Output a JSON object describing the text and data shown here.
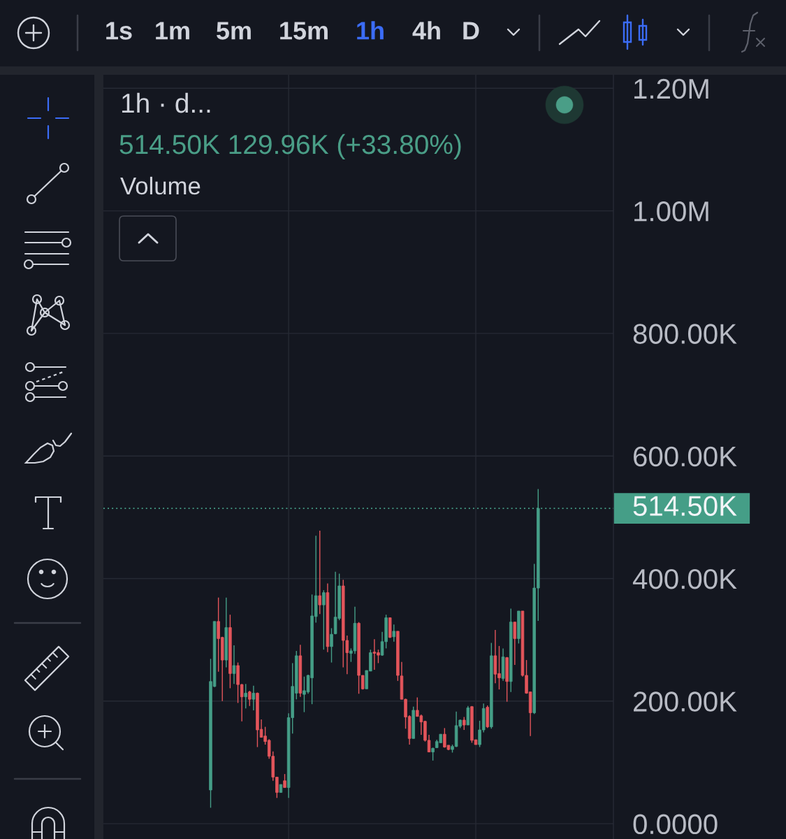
{
  "chart_data": {
    "type": "candlestick",
    "title": "1h · d...",
    "subtitle": "514.50K 129.96K (+33.80%)",
    "annotations": [
      "1s",
      "1m",
      "5m",
      "15m",
      "1h",
      "4h",
      "D",
      "Volume"
    ],
    "categories": [
      null,
      null,
      null,
      null,
      null,
      null,
      null,
      null,
      null,
      null,
      null,
      null,
      null,
      null,
      null,
      null,
      null,
      null,
      null,
      null,
      null,
      null,
      null,
      null,
      null,
      null,
      null,
      null,
      null,
      null,
      null,
      null,
      null,
      null,
      null,
      null,
      null,
      null,
      null,
      null,
      null,
      null,
      null,
      null,
      null,
      null,
      null,
      null,
      null,
      null,
      null,
      null,
      null,
      null,
      null,
      null,
      null,
      null,
      null,
      null,
      null,
      null,
      null,
      null,
      null,
      null,
      null,
      null,
      null,
      null,
      null,
      null,
      null,
      null,
      null,
      null,
      null,
      null,
      null,
      null,
      null,
      null,
      null,
      null,
      null
    ],
    "ohlc": [
      [
        55000,
        269000,
        26000,
        232000
      ],
      [
        224000,
        330000,
        223000,
        330000
      ],
      [
        330000,
        369000,
        248000,
        302000
      ],
      [
        304000,
        305000,
        200000,
        267000
      ],
      [
        267000,
        369000,
        255000,
        320000
      ],
      [
        320000,
        341000,
        221000,
        245000
      ],
      [
        245000,
        291000,
        228000,
        258000
      ],
      [
        258000,
        263000,
        197000,
        227000
      ],
      [
        227000,
        228000,
        167000,
        207000
      ],
      [
        207000,
        228000,
        188000,
        213000
      ],
      [
        215000,
        217000,
        192000,
        203000
      ],
      [
        203000,
        225000,
        185000,
        213000
      ],
      [
        213000,
        214000,
        125000,
        153000
      ],
      [
        154000,
        170000,
        141000,
        141000
      ],
      [
        143000,
        158000,
        129000,
        134000
      ],
      [
        136000,
        138000,
        106000,
        110000
      ],
      [
        110000,
        118000,
        70000,
        76000
      ],
      [
        76000,
        76000,
        42000,
        51000
      ],
      [
        51000,
        64000,
        51000,
        64000
      ],
      [
        70000,
        81000,
        59000,
        59000
      ],
      [
        59000,
        180000,
        42000,
        173000
      ],
      [
        173000,
        262000,
        147000,
        224000
      ],
      [
        213000,
        282000,
        203000,
        274000
      ],
      [
        274000,
        292000,
        207000,
        213000
      ],
      [
        211000,
        240000,
        182000,
        217000
      ],
      [
        215000,
        243000,
        212000,
        242000
      ],
      [
        238000,
        374000,
        195000,
        339000
      ],
      [
        338000,
        470000,
        328000,
        372000
      ],
      [
        372000,
        478000,
        342000,
        357000
      ],
      [
        357000,
        381000,
        284000,
        377000
      ],
      [
        377000,
        392000,
        280000,
        289000
      ],
      [
        289000,
        319000,
        263000,
        309000
      ],
      [
        310000,
        411000,
        309000,
        337000
      ],
      [
        335000,
        408000,
        332000,
        388000
      ],
      [
        388000,
        398000,
        255000,
        299000
      ],
      [
        299000,
        307000,
        244000,
        279000
      ],
      [
        278000,
        286000,
        264000,
        282000
      ],
      [
        282000,
        354000,
        277000,
        327000
      ],
      [
        327000,
        329000,
        212000,
        242000
      ],
      [
        242000,
        242000,
        219000,
        220000
      ],
      [
        220000,
        250000,
        220000,
        250000
      ],
      [
        249000,
        284000,
        249000,
        279000
      ],
      [
        280000,
        301000,
        251000,
        278000
      ],
      [
        279000,
        284000,
        262000,
        275000
      ],
      [
        275000,
        313000,
        274000,
        297000
      ],
      [
        297000,
        341000,
        286000,
        336000
      ],
      [
        336000,
        336000,
        303000,
        304000
      ],
      [
        305000,
        325000,
        297000,
        314000
      ],
      [
        314000,
        314000,
        233000,
        242000
      ],
      [
        241000,
        264000,
        203000,
        203000
      ],
      [
        203000,
        204000,
        155000,
        174000
      ],
      [
        175000,
        177000,
        129000,
        139000
      ],
      [
        139000,
        191000,
        139000,
        185000
      ],
      [
        185000,
        206000,
        175000,
        175000
      ],
      [
        176000,
        178000,
        145000,
        166000
      ],
      [
        167000,
        168000,
        134000,
        136000
      ],
      [
        136000,
        145000,
        117000,
        117000
      ],
      [
        117000,
        124000,
        103000,
        123000
      ],
      [
        124000,
        137000,
        124000,
        134000
      ],
      [
        132000,
        146000,
        132000,
        146000
      ],
      [
        146000,
        156000,
        124000,
        125000
      ],
      [
        128000,
        128000,
        120000,
        121000
      ],
      [
        121000,
        129000,
        116000,
        126000
      ],
      [
        126000,
        183000,
        125000,
        160000
      ],
      [
        159000,
        170000,
        156000,
        169000
      ],
      [
        169000,
        174000,
        153000,
        161000
      ],
      [
        161000,
        192000,
        161000,
        189000
      ],
      [
        191000,
        192000,
        132000,
        136000
      ],
      [
        137000,
        137000,
        129000,
        129000
      ],
      [
        129000,
        168000,
        125000,
        153000
      ],
      [
        153000,
        196000,
        149000,
        188000
      ],
      [
        190000,
        193000,
        156000,
        158000
      ],
      [
        158000,
        295000,
        155000,
        274000
      ],
      [
        274000,
        316000,
        229000,
        244000
      ],
      [
        245000,
        290000,
        219000,
        238000
      ],
      [
        237000,
        286000,
        233000,
        272000
      ],
      [
        271000,
        272000,
        199000,
        232000
      ],
      [
        232000,
        351000,
        215000,
        329000
      ],
      [
        329000,
        329000,
        259000,
        302000
      ],
      [
        302000,
        347000,
        294000,
        347000
      ],
      [
        347000,
        347000,
        240000,
        242000
      ],
      [
        242000,
        267000,
        212000,
        213000
      ],
      [
        215000,
        215000,
        143000,
        181000
      ],
      [
        181000,
        424000,
        179000,
        384500
      ],
      [
        384500,
        546000,
        331000,
        514500
      ]
    ],
    "colors": [
      "#459e87",
      "#459e87",
      "#e3555b",
      "#e3555b",
      "#459e87",
      "#e3555b",
      "#459e87",
      "#e3555b",
      "#e3555b",
      "#459e87",
      "#e3555b",
      "#459e87",
      "#e3555b",
      "#e3555b",
      "#e3555b",
      "#e3555b",
      "#e3555b",
      "#e3555b",
      "#459e87",
      "#e3555b",
      "#459e87",
      "#459e87",
      "#459e87",
      "#e3555b",
      "#459e87",
      "#459e87",
      "#459e87",
      "#459e87",
      "#e3555b",
      "#459e87",
      "#e3555b",
      "#459e87",
      "#459e87",
      "#459e87",
      "#e3555b",
      "#e3555b",
      "#459e87",
      "#459e87",
      "#e3555b",
      "#e3555b",
      "#459e87",
      "#459e87",
      "#e3555b",
      "#e3555b",
      "#459e87",
      "#459e87",
      "#e3555b",
      "#459e87",
      "#e3555b",
      "#e3555b",
      "#e3555b",
      "#e3555b",
      "#459e87",
      "#e3555b",
      "#e3555b",
      "#e3555b",
      "#e3555b",
      "#459e87",
      "#459e87",
      "#459e87",
      "#e3555b",
      "#e3555b",
      "#459e87",
      "#459e87",
      "#459e87",
      "#e3555b",
      "#459e87",
      "#e3555b",
      "#e3555b",
      "#459e87",
      "#459e87",
      "#e3555b",
      "#459e87",
      "#e3555b",
      "#e3555b",
      "#459e87",
      "#e3555b",
      "#459e87",
      "#e3555b",
      "#459e87",
      "#e3555b",
      "#e3555b",
      "#e3555b",
      "#459e87",
      "#459e87"
    ],
    "ylim": [
      -25000,
      1222000
    ],
    "yticks": [
      {
        "value": 0,
        "label": "0.0000"
      },
      {
        "value": 200000,
        "label": "200.00K"
      },
      {
        "value": 400000,
        "label": "400.00K"
      },
      {
        "value": 600000,
        "label": "600.00K"
      },
      {
        "value": 800000,
        "label": "800.00K"
      },
      {
        "value": 1000000,
        "label": "1.00M"
      },
      {
        "value": 1200000,
        "label": "1.20M"
      }
    ],
    "ref_lines": [
      {
        "axis": "y",
        "value": 514500,
        "label": "514.50K",
        "color": "#459e87",
        "line_style": "dotted"
      }
    ],
    "grid": true,
    "tick_labels": "y"
  }
}
